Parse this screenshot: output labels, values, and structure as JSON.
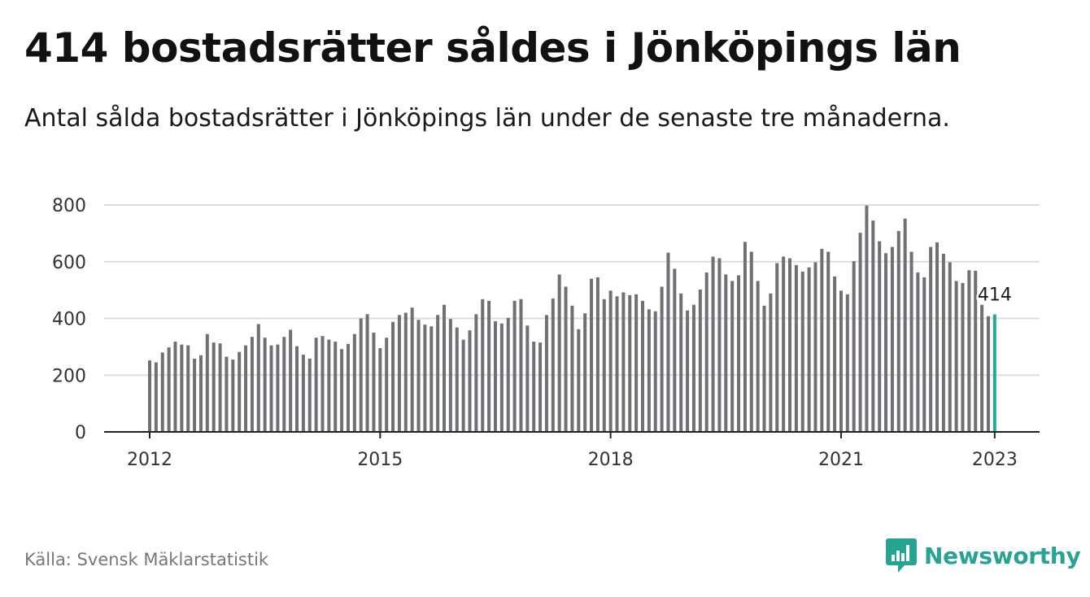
{
  "header": {
    "title": "414 bostadsrätter såldes i Jönköpings län",
    "subtitle": "Antal sålda bostadsrätter i Jönköpings län under de senaste tre månaderna."
  },
  "footer": {
    "source": "Källa: Svensk Mäklarstatistik",
    "brand": "Newsworthy",
    "brand_icon": "chart-bubble-icon"
  },
  "colors": {
    "bar": "#6f6f74",
    "highlight": "#26a69a",
    "grid": "#dddddd",
    "axis": "#222222",
    "brand": "#27a393"
  },
  "chart_data": {
    "type": "bar",
    "title": "",
    "xlabel": "",
    "ylabel": "",
    "ylim": [
      0,
      800
    ],
    "yticks": [
      0,
      200,
      400,
      600,
      800
    ],
    "xticks": [
      "2012",
      "2015",
      "2018",
      "2021",
      "2023"
    ],
    "x_start": "2012-01",
    "x_end": "2023-01",
    "grid": true,
    "highlight_label": "414",
    "values": [
      252,
      245,
      280,
      298,
      318,
      308,
      305,
      258,
      270,
      345,
      315,
      312,
      265,
      255,
      282,
      305,
      335,
      380,
      332,
      305,
      308,
      335,
      360,
      302,
      272,
      258,
      332,
      338,
      325,
      318,
      292,
      310,
      345,
      400,
      415,
      350,
      295,
      332,
      388,
      412,
      420,
      438,
      395,
      378,
      372,
      412,
      448,
      398,
      368,
      325,
      358,
      415,
      468,
      462,
      390,
      382,
      402,
      462,
      468,
      375,
      318,
      315,
      412,
      470,
      555,
      512,
      445,
      362,
      418,
      540,
      545,
      468,
      498,
      478,
      492,
      482,
      485,
      462,
      432,
      425,
      512,
      632,
      575,
      488,
      428,
      448,
      502,
      562,
      618,
      612,
      555,
      532,
      552,
      670,
      635,
      532,
      445,
      488,
      595,
      618,
      612,
      588,
      565,
      580,
      598,
      645,
      635,
      548,
      498,
      485,
      602,
      702,
      798,
      745,
      672,
      630,
      652,
      708,
      752,
      635,
      562,
      545,
      652,
      668,
      628,
      598,
      532,
      525,
      570,
      568,
      448,
      408,
      414
    ]
  }
}
